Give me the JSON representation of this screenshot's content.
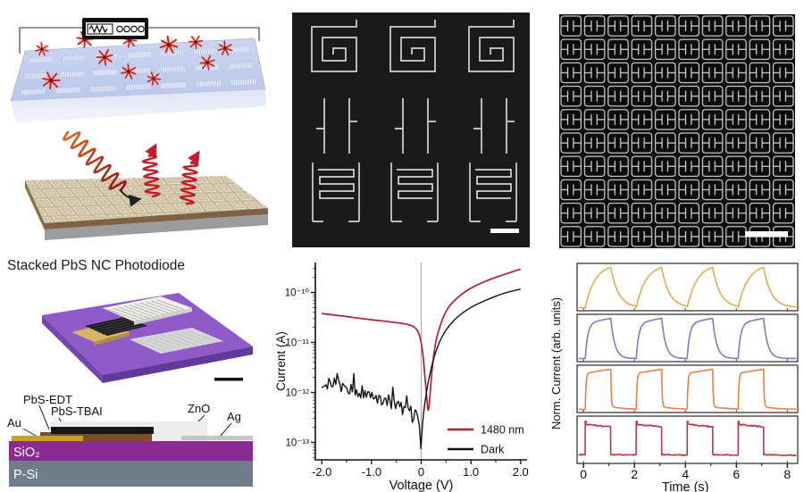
{
  "figure": {
    "photodiode": {
      "title": "Stacked PbS NC Photodiode",
      "layers": {
        "au": "Au",
        "pbs_edt": "PbS-EDT",
        "pbs_tbai": "PbS-TBAI",
        "zno": "ZnO",
        "ag": "Ag",
        "sio2": "SiO₂",
        "psi": "P-Si"
      },
      "colors": {
        "substrate_top": "#8e5bc8",
        "substrate_front": "#60399a",
        "sio2": "#8b2a92",
        "psi": "#6f7d8b",
        "au": "#c79f39",
        "pbs_tbai": "#7b4d27",
        "pbs_edt": "#161616",
        "zno": "#ededea",
        "ag": "#c6c6c6"
      }
    }
  },
  "chart_data": [
    {
      "type": "line",
      "title": "",
      "xlabel": "Voltage (V)",
      "ylabel": "Current (A)",
      "xlim": [
        -2.13,
        2.13
      ],
      "x_major_ticks": [
        -2,
        -1,
        0,
        1,
        2
      ],
      "x_tick_labels": [
        "-2.0",
        "-1.0",
        "0",
        "1.0",
        "2.0"
      ],
      "x_minor_step": 0.5,
      "ylog": true,
      "ylim_exp": [
        -13.35,
        -9.4
      ],
      "y_major_exp": [
        -13,
        -12,
        -11,
        -10
      ],
      "y_tick_labels": [
        "10⁻¹³",
        "10⁻¹²",
        "10⁻¹¹",
        "10⁻¹⁰"
      ],
      "zero_vline": true,
      "grid": false,
      "legend_position": "bottom-right",
      "series": [
        {
          "name": "1480 nm",
          "color": "#b2232e",
          "points": [
            [
              -2,
              3.8e-11
            ],
            [
              -1.6,
              3.4e-11
            ],
            [
              -1.2,
              3e-11
            ],
            [
              -0.8,
              2.7e-11
            ],
            [
              -0.5,
              2.5e-11
            ],
            [
              -0.3,
              2.35e-11
            ],
            [
              -0.15,
              2.1e-11
            ],
            [
              -0.05,
              1.65e-11
            ],
            [
              0.02,
              8e-12
            ],
            [
              0.07,
              2.5e-12
            ],
            [
              0.11,
              8e-13
            ],
            [
              0.14,
              3.7e-13
            ],
            [
              0.17,
              7e-13
            ],
            [
              0.21,
              2.5e-12
            ],
            [
              0.27,
              8e-12
            ],
            [
              0.35,
              1.8e-11
            ],
            [
              0.5,
              4.5e-11
            ],
            [
              0.7,
              7.6e-11
            ],
            [
              1.0,
              1.26e-10
            ],
            [
              1.4,
              1.86e-10
            ],
            [
              1.7,
              2.34e-10
            ],
            [
              2.0,
              2.95e-10
            ]
          ]
        },
        {
          "name": "Dark",
          "color": "#141414",
          "noise": {
            "vmax": -0.02,
            "log_amplitude": 0.13
          },
          "points": [
            [
              -2,
              1.66e-12
            ],
            [
              -1.75,
              1.45e-12
            ],
            [
              -1.5,
              1.2e-12
            ],
            [
              -1.25,
              1.05e-12
            ],
            [
              -1,
              8.9e-13
            ],
            [
              -0.8,
              7.6e-13
            ],
            [
              -0.6,
              6.3e-13
            ],
            [
              -0.45,
              5.4e-13
            ],
            [
              -0.35,
              4.7e-13
            ],
            [
              -0.25,
              4.2e-13
            ],
            [
              -0.18,
              3.9e-13
            ],
            [
              -0.12,
              3.3e-13
            ],
            [
              -0.07,
              2.9e-13
            ],
            [
              -0.04,
              2.2e-13
            ],
            [
              -0.02,
              1.4e-13
            ],
            [
              -0.005,
              7.5e-14
            ],
            [
              0.02,
              1.9e-13
            ],
            [
              0.05,
              4.2e-13
            ],
            [
              0.1,
              9.5e-13
            ],
            [
              0.15,
              1.8e-12
            ],
            [
              0.25,
              5e-12
            ],
            [
              0.4,
              1.26e-11
            ],
            [
              0.6,
              2.5e-11
            ],
            [
              0.9,
              4.5e-11
            ],
            [
              1.3,
              7.1e-11
            ],
            [
              1.7,
              1e-10
            ],
            [
              2.0,
              1.17e-10
            ]
          ]
        }
      ]
    },
    {
      "type": "line",
      "xlabel": "Time (s)",
      "ylabel": "Norm. Current (arb. units)",
      "x_ticks": [
        0,
        2,
        4,
        6,
        8
      ],
      "x_tick_labels": [
        "0",
        "2",
        "4",
        "6",
        "8"
      ],
      "xlim": [
        -0.25,
        8.41
      ],
      "period_s": 2,
      "on_time_s": 1,
      "cycles": 4,
      "t_start_s": 0.07,
      "panels": [
        {
          "name": "response-slow",
          "color": "#e3ad4e",
          "profile": "slow-rise-slow-decay",
          "rise_tau_s": 0.38,
          "decay_tau_s": 0.3
        },
        {
          "name": "response-medium",
          "color": "#8578c8",
          "profile": "fast-rise-creep-decay",
          "rise_tau_s": 0.1,
          "decay_tau_s": 0.16
        },
        {
          "name": "response-fast",
          "color": "#ee7e44",
          "profile": "square-with-tail",
          "rise_tau_s": 0.03,
          "decay_tau_s": 0.022
        },
        {
          "name": "response-noisy-square",
          "color": "#bc3a45",
          "profile": "noisy-square",
          "high_level": 0.9,
          "low_level": 0.14,
          "noise_amplitude": 0.03
        }
      ]
    }
  ]
}
